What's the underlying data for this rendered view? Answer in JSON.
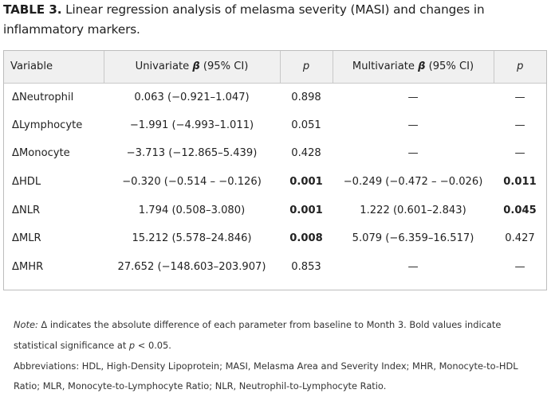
{
  "caption": {
    "label": "TABLE 3.",
    "text": " Linear regression analysis of melasma severity (MASI) and changes in inflammatory markers."
  },
  "table": {
    "headers": {
      "variable": "Variable",
      "univariate_prefix": "Univariate ",
      "beta": "β",
      "univariate_suffix": " (95% CI)",
      "p1": "p",
      "multivariate_prefix": "Multivariate ",
      "multivariate_suffix": " (95% CI)",
      "p2": "p"
    },
    "rows": [
      {
        "variable": "ΔNeutrophil",
        "uni": "0.063 (−0.921–1.047)",
        "p1": "0.898",
        "multi": "—",
        "p2": "—"
      },
      {
        "variable": "ΔLymphocyte",
        "uni": "−1.991 (−4.993–1.011)",
        "p1": "0.051",
        "multi": "—",
        "p2": "—"
      },
      {
        "variable": "ΔMonocyte",
        "uni": "−3.713 (−12.865–5.439)",
        "p1": "0.428",
        "multi": "—",
        "p2": "—"
      },
      {
        "variable": "ΔHDL",
        "uni": "−0.320 (−0.514 – −0.126)",
        "p1": "0.001",
        "multi": "−0.249 (−0.472 – −0.026)",
        "p2": "0.011"
      },
      {
        "variable": "ΔNLR",
        "uni": "1.794 (0.508–3.080)",
        "p1": "0.001",
        "multi": "1.222 (0.601–2.843)",
        "p2": "0.045"
      },
      {
        "variable": "ΔMLR",
        "uni": "15.212 (5.578–24.846)",
        "p1": "0.008",
        "multi": "5.079 (−6.359–16.517)",
        "p2": "0.427"
      },
      {
        "variable": "ΔMHR",
        "uni": "27.652 (−148.603–203.907)",
        "p1": "0.853",
        "multi": "—",
        "p2": "—"
      }
    ]
  },
  "notes": {
    "note_label": "Note:",
    "note_text_1": " Δ indicates the absolute difference of each parameter from baseline to Month 3. Bold values indicate statistical significance at ",
    "note_p": "p",
    "note_text_2": " < 0.05.",
    "abbreviations": "Abbreviations: HDL, High-Density Lipoprotein; MASI, Melasma Area and Severity Index; MHR, Monocyte-to-HDL Ratio; MLR, Monocyte-to-Lymphocyte Ratio; NLR, Neutrophil-to-Lymphocyte Ratio."
  }
}
